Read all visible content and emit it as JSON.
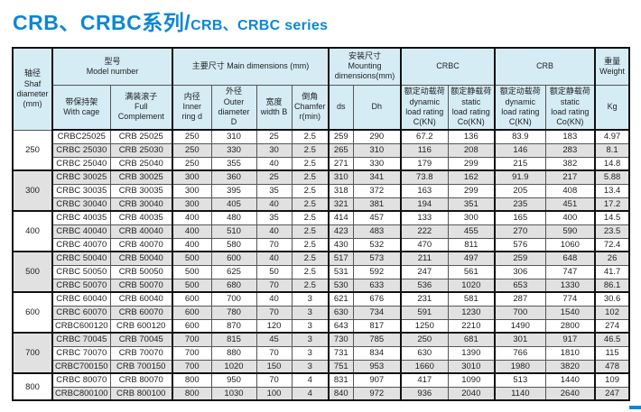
{
  "colors": {
    "accent_blue": "#0c86d6",
    "header_bg": "#d5ecf5",
    "row_stripe": "#e1e1e1"
  },
  "title": {
    "cn": "CRB、CRBC系列/",
    "en": "CRB、CRBC series"
  },
  "table": {
    "header": {
      "shaft": "轴径\nShaf\ndiameter\n(mm)",
      "model": "型号\nModel number",
      "main_dims": "主要尺寸 Main dimensions (mm)",
      "mounting": "安装尺寸\nMounting\ndimensions(mm)",
      "crbc": "CRBC",
      "crb": "CRB",
      "weight": "重量\nWeight",
      "with_cage": "带保持架\nWith cage",
      "full_complement": "满装滚子\nFull\nComplement",
      "inner": "内径\nInner\nring d",
      "outer": "外径\nOuter\ndiameter\nD",
      "width": "宽度\nwidth B",
      "chamfer": "倒角\nChamfer\nr(min)",
      "ds": "ds",
      "dh": "Dh",
      "crbc_dynamic": "额定动载荷\ndynamic\nload rating\nC(KN)",
      "crbc_static": "额定静载荷\nstatic\nload rating\nCo(KN)",
      "crb_dynamic": "额定动载荷\ndynamic\nload rating\nC(KN)",
      "crb_static": "额定静载荷\nstatic\nload rating\nCo(KN)",
      "kg": "Kg"
    },
    "groups": [
      {
        "shaft": "250",
        "rows": [
          [
            "CRBC25025",
            "CRB 25025",
            "250",
            "310",
            "25",
            "2.5",
            "259",
            "290",
            "67.2",
            "136",
            "83.9",
            "183",
            "4.97"
          ],
          [
            "CRBC 25030",
            "CRB 25030",
            "250",
            "330",
            "30",
            "2.5",
            "265",
            "310",
            "116",
            "208",
            "146",
            "283",
            "8.1"
          ],
          [
            "CRBC 25040",
            "CRB 25040",
            "250",
            "355",
            "40",
            "2.5",
            "271",
            "330",
            "179",
            "299",
            "215",
            "382",
            "14.8"
          ]
        ]
      },
      {
        "shaft": "300",
        "rows": [
          [
            "CRBC 30025",
            "CRB 30025",
            "300",
            "360",
            "25",
            "2.5",
            "310",
            "341",
            "73.8",
            "162",
            "91.9",
            "217",
            "5.88"
          ],
          [
            "CRBC 30035",
            "CRB 30035",
            "300",
            "395",
            "35",
            "2.5",
            "318",
            "372",
            "163",
            "299",
            "205",
            "408",
            "13.4"
          ],
          [
            "CRBC 30040",
            "CRB 30040",
            "300",
            "405",
            "40",
            "2.5",
            "321",
            "381",
            "194",
            "351",
            "235",
            "451",
            "17.2"
          ]
        ]
      },
      {
        "shaft": "400",
        "rows": [
          [
            "CRBC 40035",
            "CRB 40035",
            "400",
            "480",
            "35",
            "2.5",
            "414",
            "457",
            "133",
            "300",
            "165",
            "400",
            "14.5"
          ],
          [
            "CRBC 40040",
            "CRB 40040",
            "400",
            "510",
            "40",
            "2.5",
            "423",
            "483",
            "222",
            "455",
            "270",
            "590",
            "23.5"
          ],
          [
            "CRBC 40070",
            "CRB 40070",
            "400",
            "580",
            "70",
            "2.5",
            "430",
            "532",
            "470",
            "811",
            "576",
            "1060",
            "72.4"
          ]
        ]
      },
      {
        "shaft": "500",
        "rows": [
          [
            "CRBC 50040",
            "CRB 50040",
            "500",
            "600",
            "40",
            "2.5",
            "517",
            "573",
            "211",
            "497",
            "259",
            "648",
            "26"
          ],
          [
            "CRBC 50050",
            "CRB 50050",
            "500",
            "625",
            "50",
            "2.5",
            "531",
            "592",
            "247",
            "561",
            "306",
            "747",
            "41.7"
          ],
          [
            "CRBC 50070",
            "CRB 50070",
            "500",
            "680",
            "70",
            "2.5",
            "530",
            "633",
            "536",
            "1020",
            "653",
            "1330",
            "86.1"
          ]
        ]
      },
      {
        "shaft": "600",
        "rows": [
          [
            "CRBC 60040",
            "CRB 60040",
            "600",
            "700",
            "40",
            "3",
            "621",
            "676",
            "231",
            "581",
            "287",
            "774",
            "30.6"
          ],
          [
            "CRBC 60070",
            "CRB 60070",
            "600",
            "780",
            "70",
            "3",
            "630",
            "734",
            "591",
            "1230",
            "700",
            "1540",
            "102"
          ],
          [
            "CRBC600120",
            "CRB 600120",
            "600",
            "870",
            "120",
            "3",
            "643",
            "817",
            "1250",
            "2210",
            "1490",
            "2800",
            "274"
          ]
        ]
      },
      {
        "shaft": "700",
        "rows": [
          [
            "CRBC 70045",
            "CRB 70045",
            "700",
            "815",
            "45",
            "3",
            "730",
            "785",
            "250",
            "681",
            "301",
            "917",
            "46.5"
          ],
          [
            "CRBC 70070",
            "CRB 70070",
            "700",
            "880",
            "70",
            "3",
            "731",
            "834",
            "630",
            "1390",
            "766",
            "1810",
            "115"
          ],
          [
            "CRBC700150",
            "CRB 700150",
            "700",
            "1020",
            "150",
            "3",
            "751",
            "953",
            "1660",
            "3010",
            "1980",
            "3820",
            "478"
          ]
        ]
      },
      {
        "shaft": "800",
        "rows": [
          [
            "CRBC 80070",
            "CRB 80070",
            "800",
            "950",
            "70",
            "4",
            "831",
            "907",
            "417",
            "1090",
            "513",
            "1440",
            "109"
          ],
          [
            "CRBC800100",
            "CRB 800100",
            "800",
            "1030",
            "100",
            "4",
            "840",
            "972",
            "936",
            "2040",
            "1140",
            "2640",
            "247"
          ]
        ]
      }
    ]
  }
}
